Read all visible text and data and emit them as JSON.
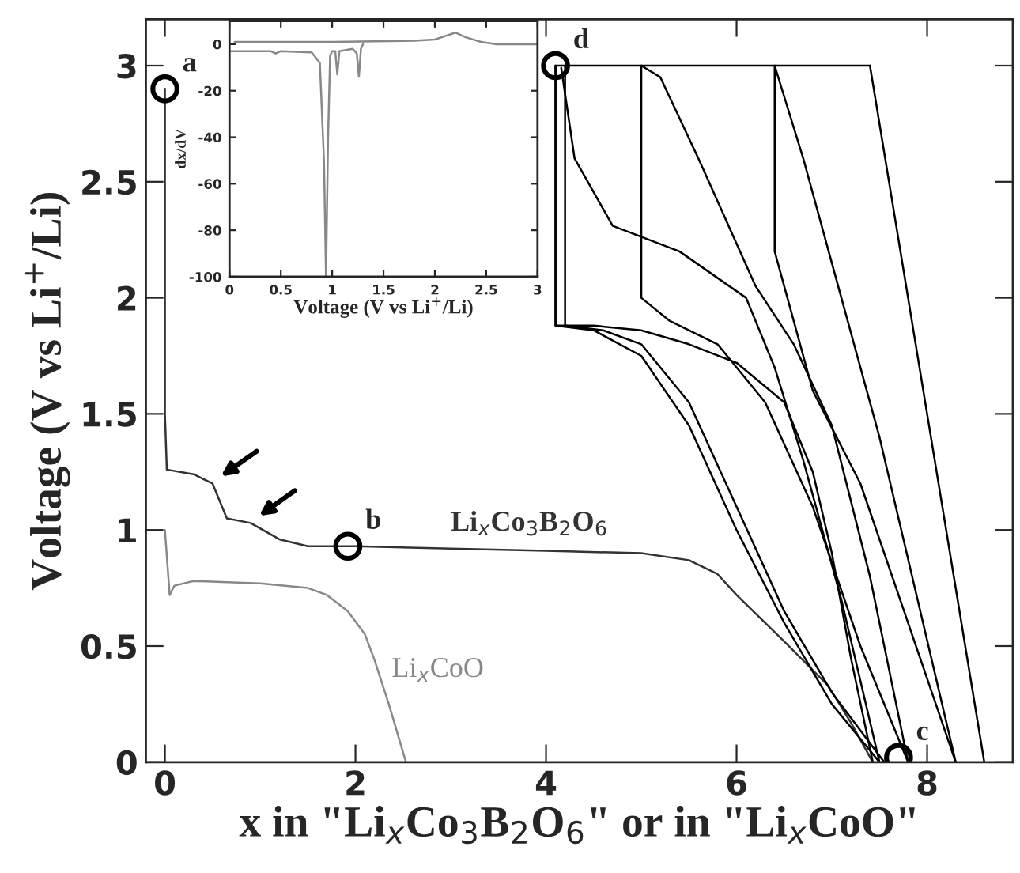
{
  "chart_data": [
    {
      "type": "line",
      "xlabel": "x in \"Li$_{x}$Co$_{3}$B$_{2}$O$_{6}$\" or in \"Li$_{x}$CoO\"",
      "ylabel": "Voltage (V vs Li$^{+}$/Li)",
      "xlim": [
        -0.2,
        8.9
      ],
      "ylim": [
        0,
        3.2
      ],
      "xticks": [
        0,
        2,
        4,
        6,
        8
      ],
      "yticks": [
        0,
        0.5,
        1,
        1.5,
        2,
        2.5,
        3
      ],
      "grid": false,
      "line_style": "solid",
      "series": [
        {
          "name": "Li$_{x}$Co$_{3}$B$_{2}$O$_{6}$",
          "color": "#333333",
          "x": [
            0,
            0,
            0.02,
            0.3,
            0.5,
            0.65,
            0.9,
            1.2,
            1.5,
            2,
            3,
            4,
            5,
            5.5,
            5.8,
            6.0,
            6.5,
            6.96,
            7.2,
            7.43
          ],
          "values": [
            2.9,
            1.5,
            1.26,
            1.24,
            1.2,
            1.05,
            1.03,
            0.96,
            0.93,
            0.93,
            0.92,
            0.91,
            0.9,
            0.87,
            0.81,
            0.72,
            0.52,
            0.33,
            0.17,
            0
          ]
        },
        {
          "name": "Li$_{x}$CoO",
          "color": "#888888",
          "x": [
            0,
            0.05,
            0.1,
            0.3,
            1.0,
            1.5,
            1.7,
            1.92,
            2.1,
            2.2,
            2.35,
            2.53
          ],
          "values": [
            1.0,
            0.72,
            0.76,
            0.78,
            0.77,
            0.75,
            0.72,
            0.65,
            0.55,
            0.44,
            0.25,
            0
          ]
        },
        {
          "color": "#000000",
          "x": [
            7.43,
            7.2,
            7.0,
            6.8,
            6.5,
            6.0,
            5.5,
            5.0,
            4.5,
            4.1,
            4.1
          ],
          "values": [
            0,
            0.45,
            0.9,
            1.25,
            1.55,
            1.72,
            1.8,
            1.86,
            1.88,
            1.88,
            3.0
          ]
        },
        {
          "color": "#000000",
          "x": [
            4.1,
            4.1,
            4.5,
            5.0,
            5.5,
            6.0,
            6.5,
            7.0,
            7.5
          ],
          "values": [
            3.0,
            1.88,
            1.86,
            1.75,
            1.45,
            1.0,
            0.6,
            0.25,
            0
          ]
        },
        {
          "color": "#000000",
          "x": [
            7.5,
            7.1,
            6.7,
            6.4,
            6.1,
            5.4,
            4.7,
            4.3,
            4.16
          ],
          "values": [
            0,
            0.7,
            1.3,
            1.7,
            2.0,
            2.2,
            2.31,
            2.6,
            2.99
          ]
        },
        {
          "color": "#000000",
          "x": [
            4.2,
            4.2,
            4.6,
            5.0,
            5.5,
            6.0,
            6.5,
            7.0,
            7.55
          ],
          "values": [
            3.0,
            1.88,
            1.86,
            1.8,
            1.55,
            1.1,
            0.65,
            0.3,
            0
          ]
        },
        {
          "color": "#000000",
          "x": [
            7.8,
            7.4,
            7.0,
            6.6,
            6.2,
            5.6,
            5.2,
            5.0
          ],
          "values": [
            0,
            0.8,
            1.45,
            1.8,
            2.05,
            2.6,
            2.95,
            3.0
          ]
        },
        {
          "color": "#000000",
          "x": [
            5.0,
            5.0,
            5.3,
            5.8,
            6.3,
            6.8,
            7.3,
            7.8
          ],
          "values": [
            3.0,
            2.0,
            1.9,
            1.8,
            1.55,
            1.1,
            0.5,
            0
          ]
        },
        {
          "color": "#000000",
          "x": [
            8.3,
            7.9,
            7.5,
            7.1,
            6.7,
            6.4
          ],
          "values": [
            0,
            0.7,
            1.4,
            2.0,
            2.6,
            3.0
          ]
        },
        {
          "color": "#000000",
          "x": [
            6.4,
            6.4,
            6.8,
            7.3,
            7.8,
            8.3
          ],
          "values": [
            3.0,
            2.2,
            1.6,
            1.2,
            0.6,
            0
          ]
        },
        {
          "color": "#000000",
          "x": [
            8.6,
            8.0,
            7.4
          ],
          "values": [
            0,
            1.5,
            3.0
          ]
        },
        {
          "color": "#000000",
          "x": [
            4.1,
            7.4
          ],
          "values": [
            3.0,
            3.0
          ]
        }
      ],
      "annotations": [
        {
          "text": "a",
          "x": 0,
          "y": 2.9
        },
        {
          "text": "b",
          "x": 1.92,
          "y": 0.93
        },
        {
          "text": "c",
          "x": 7.7,
          "y": 0.02
        },
        {
          "text": "d",
          "x": 4.1,
          "y": 3.0
        }
      ]
    },
    {
      "type": "line",
      "xlabel": "Voltage (V vs Li$^{+}$/Li)",
      "ylabel": "dx/dV",
      "xlim": [
        0,
        3
      ],
      "ylim": [
        -100,
        10
      ],
      "xticks": [
        0,
        0.5,
        1,
        1.5,
        2,
        2.5,
        3
      ],
      "yticks": [
        -100,
        -80,
        -60,
        -40,
        -20,
        0
      ],
      "grid": false,
      "line_style": "solid",
      "series": [
        {
          "color": "#888888",
          "x": [
            0,
            0.4,
            0.45,
            0.5,
            0.8,
            0.88,
            0.92,
            0.94,
            0.96,
            0.98,
            1.0,
            1.03,
            1.05,
            1.07,
            1.2,
            1.24,
            1.26,
            1.28,
            1.3
          ],
          "values": [
            -3,
            -3,
            -4,
            -3,
            -3.5,
            -8,
            -50,
            -100,
            -40,
            -5,
            -3,
            -3,
            -13,
            -3,
            -2,
            -4,
            -14,
            -2,
            0
          ]
        },
        {
          "color": "#888888",
          "x": [
            0.05,
            1.0,
            1.8,
            2.0,
            2.1,
            2.2,
            2.3,
            2.45,
            2.6,
            3.0
          ],
          "values": [
            1,
            1,
            1.5,
            2,
            3.5,
            5,
            3,
            1,
            0,
            0
          ]
        }
      ]
    }
  ]
}
